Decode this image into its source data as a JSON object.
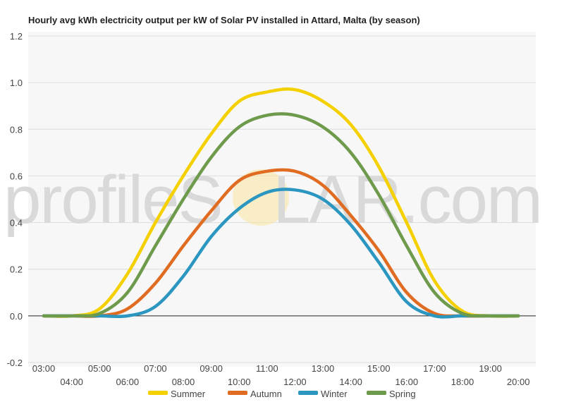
{
  "chart_data": {
    "type": "line",
    "title": "Hourly avg kWh electricity output per kW of Solar PV installed in Attard, Malta (by season)",
    "xlabel": "",
    "ylabel": "",
    "ylim": [
      -0.2,
      1.2
    ],
    "yticks": [
      "1.2",
      "1.0",
      "0.8",
      "0.6",
      "0.4",
      "0.2",
      "0.0",
      "-0.2"
    ],
    "ytick_values": [
      1.2,
      1.0,
      0.8,
      0.6,
      0.4,
      0.2,
      0.0,
      -0.2
    ],
    "categories": [
      "03:00",
      "04:00",
      "05:00",
      "06:00",
      "07:00",
      "08:00",
      "09:00",
      "10:00",
      "11:00",
      "12:00",
      "13:00",
      "14:00",
      "15:00",
      "16:00",
      "17:00",
      "18:00",
      "19:00",
      "20:00"
    ],
    "grid": true,
    "legend_position": "bottom",
    "series": [
      {
        "name": "Summer",
        "color": "#f5d000",
        "values": [
          0.0,
          0.0,
          0.03,
          0.18,
          0.4,
          0.6,
          0.78,
          0.92,
          0.96,
          0.97,
          0.92,
          0.82,
          0.64,
          0.4,
          0.15,
          0.02,
          0.0,
          0.0
        ]
      },
      {
        "name": "Autumn",
        "color": "#e06c22",
        "values": [
          0.0,
          0.0,
          0.0,
          0.03,
          0.14,
          0.3,
          0.45,
          0.58,
          0.62,
          0.62,
          0.56,
          0.43,
          0.28,
          0.1,
          0.01,
          0.0,
          0.0,
          0.0
        ]
      },
      {
        "name": "Winter",
        "color": "#2b96c0",
        "values": [
          0.0,
          0.0,
          0.0,
          0.0,
          0.04,
          0.17,
          0.34,
          0.46,
          0.53,
          0.54,
          0.5,
          0.39,
          0.23,
          0.06,
          0.0,
          0.0,
          0.0,
          0.0
        ]
      },
      {
        "name": "Spring",
        "color": "#6e9a4c",
        "values": [
          0.0,
          0.0,
          0.01,
          0.1,
          0.3,
          0.5,
          0.68,
          0.81,
          0.86,
          0.86,
          0.81,
          0.7,
          0.52,
          0.3,
          0.1,
          0.01,
          0.0,
          0.0
        ]
      }
    ]
  },
  "watermark": {
    "left": "profileS",
    "sun": "O",
    "right": "LAR.com"
  }
}
